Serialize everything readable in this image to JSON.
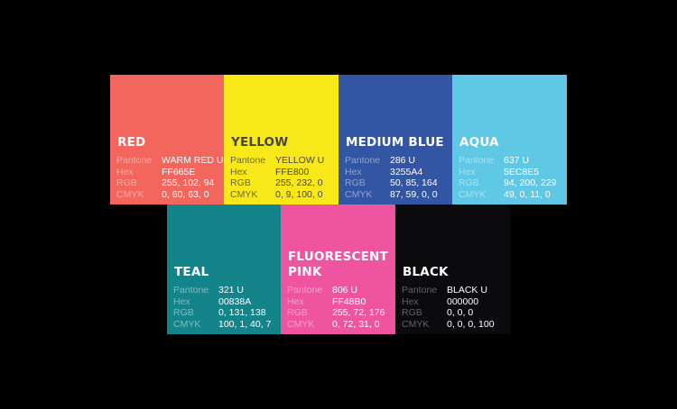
{
  "labels": {
    "pantone": "Pantone",
    "hex": "Hex",
    "rgb": "RGB",
    "cmyk": "CMYK"
  },
  "swatches": [
    {
      "name": "RED",
      "pantone": "WARM RED U",
      "hex": "FF665E",
      "rgb": "255, 102, 94",
      "cmyk": "0, 60, 63, 0",
      "color": "#F2665E"
    },
    {
      "name": "YELLOW",
      "pantone": "YELLOW U",
      "hex": "FFE800",
      "rgb": "255, 232, 0",
      "cmyk": "0, 9, 100, 0",
      "color": "#F8E81A"
    },
    {
      "name": "MEDIUM BLUE",
      "pantone": "286 U",
      "hex": "3255A4",
      "rgb": "50, 85, 164",
      "cmyk": "87, 59, 0, 0",
      "color": "#3255A4"
    },
    {
      "name": "AQUA",
      "pantone": "637 U",
      "hex": "5EC8E5",
      "rgb": "94, 200, 229",
      "cmyk": "49, 0, 11, 0",
      "color": "#5EC8E5"
    },
    {
      "name": "TEAL",
      "pantone": "321 U",
      "hex": "00838A",
      "rgb": "0, 131, 138",
      "cmyk": "100, 1, 40, 7",
      "color": "#12848A"
    },
    {
      "name_line1": "FLUORESCENT",
      "name_line2": "PINK",
      "pantone": "806 U",
      "hex": "FF48B0",
      "rgb": "255, 72, 176",
      "cmyk": "0, 72, 31, 0",
      "color": "#EE54A0"
    },
    {
      "name": "BLACK",
      "pantone": "BLACK U",
      "hex": "000000",
      "rgb": "0, 0, 0",
      "cmyk": "0, 0, 0, 100",
      "color": "#0B0B0D"
    }
  ]
}
